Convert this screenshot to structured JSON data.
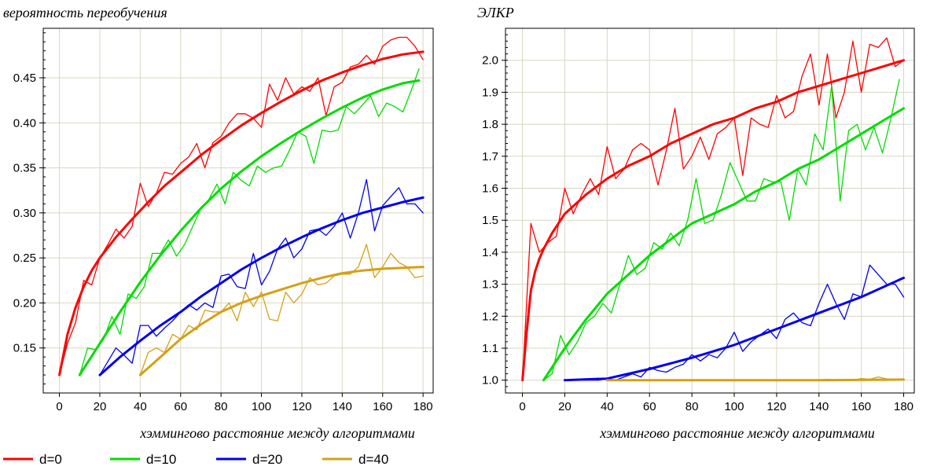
{
  "chart_data": [
    {
      "type": "line",
      "title": "вероятность переобучения",
      "xlabel": "хэммингово расстояние между алгоритмами",
      "xlim": [
        -8,
        185
      ],
      "ylim": [
        0.1,
        0.505
      ],
      "xticks": [
        0,
        20,
        40,
        60,
        80,
        100,
        120,
        140,
        160,
        180
      ],
      "xtick_labels": [
        "0",
        "20",
        "40",
        "60",
        "80",
        "100",
        "120",
        "140",
        "160",
        "180"
      ],
      "yticks": [
        0.15,
        0.2,
        0.25,
        0.3,
        0.35,
        0.4,
        0.45
      ],
      "ytick_labels": [
        "0.15",
        "0.20",
        "0.25",
        "0.30",
        "0.35",
        "0.40",
        "0.45"
      ],
      "grid": true,
      "series": [
        {
          "name": "d=0",
          "color": "#ff0000",
          "kind": "smooth",
          "x": [
            0,
            4,
            8,
            12,
            16,
            20,
            28,
            36,
            44,
            52,
            60,
            70,
            80,
            90,
            100,
            110,
            120,
            130,
            140,
            150,
            160,
            170,
            180
          ],
          "y": [
            0.12,
            0.165,
            0.195,
            0.218,
            0.236,
            0.25,
            0.273,
            0.293,
            0.312,
            0.33,
            0.345,
            0.364,
            0.381,
            0.397,
            0.411,
            0.424,
            0.436,
            0.447,
            0.456,
            0.464,
            0.471,
            0.476,
            0.479
          ]
        },
        {
          "name": "d=0",
          "color": "#ff0000",
          "kind": "noisy",
          "x": [
            0,
            4,
            8,
            12,
            16,
            20,
            24,
            28,
            32,
            36,
            40,
            44,
            48,
            52,
            56,
            60,
            64,
            68,
            72,
            76,
            80,
            84,
            88,
            92,
            96,
            100,
            104,
            108,
            112,
            116,
            120,
            124,
            128,
            132,
            136,
            140,
            144,
            148,
            152,
            156,
            160,
            164,
            168,
            172,
            176,
            180
          ],
          "y": [
            0.12,
            0.155,
            0.178,
            0.225,
            0.22,
            0.25,
            0.265,
            0.282,
            0.272,
            0.285,
            0.333,
            0.307,
            0.322,
            0.345,
            0.343,
            0.355,
            0.362,
            0.377,
            0.35,
            0.378,
            0.385,
            0.4,
            0.41,
            0.41,
            0.405,
            0.395,
            0.443,
            0.425,
            0.45,
            0.432,
            0.44,
            0.435,
            0.45,
            0.408,
            0.44,
            0.445,
            0.462,
            0.465,
            0.475,
            0.465,
            0.485,
            0.492,
            0.495,
            0.495,
            0.485,
            0.47
          ]
        },
        {
          "name": "d=10",
          "color": "#00dd00",
          "kind": "smooth",
          "x": [
            10,
            20,
            30,
            40,
            50,
            60,
            70,
            80,
            90,
            100,
            110,
            120,
            130,
            140,
            150,
            160,
            170,
            178
          ],
          "y": [
            0.12,
            0.155,
            0.19,
            0.223,
            0.253,
            0.28,
            0.305,
            0.327,
            0.346,
            0.363,
            0.378,
            0.392,
            0.405,
            0.417,
            0.428,
            0.437,
            0.444,
            0.447
          ]
        },
        {
          "name": "d=10",
          "color": "#00dd00",
          "kind": "noisy",
          "x": [
            10,
            14,
            18,
            22,
            26,
            30,
            34,
            38,
            42,
            46,
            50,
            54,
            58,
            62,
            66,
            70,
            74,
            78,
            82,
            86,
            90,
            94,
            98,
            102,
            106,
            110,
            114,
            118,
            122,
            126,
            130,
            134,
            138,
            142,
            146,
            150,
            154,
            158,
            162,
            166,
            170,
            174,
            178
          ],
          "y": [
            0.12,
            0.15,
            0.148,
            0.16,
            0.185,
            0.165,
            0.21,
            0.205,
            0.218,
            0.255,
            0.255,
            0.27,
            0.252,
            0.265,
            0.285,
            0.305,
            0.315,
            0.332,
            0.31,
            0.345,
            0.336,
            0.33,
            0.352,
            0.345,
            0.35,
            0.352,
            0.37,
            0.39,
            0.385,
            0.355,
            0.392,
            0.39,
            0.392,
            0.418,
            0.41,
            0.42,
            0.43,
            0.407,
            0.422,
            0.418,
            0.412,
            0.435,
            0.46
          ]
        },
        {
          "name": "d=20",
          "color": "#0000ee",
          "kind": "smooth",
          "x": [
            20,
            30,
            40,
            50,
            60,
            70,
            80,
            90,
            100,
            110,
            120,
            130,
            140,
            150,
            160,
            170,
            180
          ],
          "y": [
            0.12,
            0.14,
            0.158,
            0.175,
            0.19,
            0.207,
            0.222,
            0.237,
            0.25,
            0.262,
            0.273,
            0.283,
            0.292,
            0.3,
            0.306,
            0.312,
            0.317
          ]
        },
        {
          "name": "d=20",
          "color": "#0000ee",
          "kind": "noisy",
          "x": [
            20,
            24,
            28,
            32,
            36,
            40,
            44,
            48,
            52,
            56,
            60,
            64,
            68,
            72,
            76,
            80,
            84,
            88,
            92,
            96,
            100,
            104,
            108,
            112,
            116,
            120,
            124,
            128,
            132,
            136,
            140,
            144,
            148,
            152,
            156,
            160,
            164,
            168,
            172,
            176,
            180
          ],
          "y": [
            0.12,
            0.135,
            0.15,
            0.142,
            0.133,
            0.175,
            0.175,
            0.163,
            0.172,
            0.18,
            0.19,
            0.198,
            0.192,
            0.2,
            0.195,
            0.23,
            0.232,
            0.218,
            0.216,
            0.255,
            0.22,
            0.235,
            0.26,
            0.272,
            0.25,
            0.26,
            0.28,
            0.282,
            0.275,
            0.285,
            0.3,
            0.272,
            0.3,
            0.337,
            0.28,
            0.308,
            0.318,
            0.328,
            0.31,
            0.31,
            0.3
          ]
        },
        {
          "name": "d=40",
          "color": "#d4a017",
          "kind": "smooth",
          "x": [
            40,
            50,
            60,
            70,
            80,
            90,
            100,
            110,
            120,
            130,
            140,
            150,
            160,
            170,
            180
          ],
          "y": [
            0.12,
            0.14,
            0.16,
            0.176,
            0.19,
            0.2,
            0.208,
            0.215,
            0.222,
            0.228,
            0.233,
            0.236,
            0.238,
            0.239,
            0.24
          ]
        },
        {
          "name": "d=40",
          "color": "#d4a017",
          "kind": "noisy",
          "x": [
            40,
            44,
            48,
            52,
            56,
            60,
            64,
            68,
            72,
            76,
            80,
            84,
            88,
            92,
            96,
            100,
            104,
            108,
            112,
            116,
            120,
            124,
            128,
            132,
            136,
            140,
            144,
            148,
            152,
            156,
            160,
            164,
            168,
            172,
            176,
            180
          ],
          "y": [
            0.12,
            0.145,
            0.15,
            0.145,
            0.165,
            0.16,
            0.175,
            0.17,
            0.192,
            0.19,
            0.19,
            0.2,
            0.18,
            0.212,
            0.196,
            0.212,
            0.182,
            0.18,
            0.212,
            0.2,
            0.21,
            0.228,
            0.22,
            0.222,
            0.23,
            0.232,
            0.232,
            0.24,
            0.265,
            0.228,
            0.24,
            0.255,
            0.245,
            0.24,
            0.228,
            0.23
          ]
        }
      ]
    },
    {
      "type": "line",
      "title": "ЭЛКР",
      "xlabel": "хэммингово расстояние между алгоритмами",
      "xlim": [
        -8,
        185
      ],
      "ylim": [
        0.96,
        2.1
      ],
      "xticks": [
        0,
        20,
        40,
        60,
        80,
        100,
        120,
        140,
        160,
        180
      ],
      "xtick_labels": [
        "0",
        "20",
        "40",
        "60",
        "80",
        "100",
        "120",
        "140",
        "160",
        "180"
      ],
      "yticks": [
        1.0,
        1.1,
        1.2,
        1.3,
        1.4,
        1.5,
        1.6,
        1.7,
        1.8,
        1.9,
        2.0
      ],
      "ytick_labels": [
        "1.0",
        "1.1",
        "1.2",
        "1.3",
        "1.4",
        "1.5",
        "1.6",
        "1.7",
        "1.8",
        "1.9",
        "2.0"
      ],
      "grid": true,
      "series": [
        {
          "name": "d=0",
          "color": "#ff0000",
          "kind": "smooth",
          "x": [
            0,
            2,
            4,
            6,
            8,
            10,
            14,
            20,
            30,
            40,
            50,
            60,
            70,
            80,
            90,
            100,
            110,
            120,
            130,
            140,
            150,
            160,
            170,
            180
          ],
          "y": [
            1.0,
            1.15,
            1.28,
            1.34,
            1.38,
            1.41,
            1.46,
            1.52,
            1.58,
            1.63,
            1.67,
            1.7,
            1.74,
            1.77,
            1.8,
            1.82,
            1.85,
            1.87,
            1.9,
            1.92,
            1.94,
            1.96,
            1.98,
            2.0
          ]
        },
        {
          "name": "d=0",
          "color": "#ff0000",
          "kind": "noisy",
          "x": [
            0,
            4,
            8,
            12,
            16,
            20,
            24,
            28,
            32,
            36,
            40,
            44,
            48,
            52,
            56,
            60,
            64,
            68,
            72,
            76,
            80,
            84,
            88,
            92,
            96,
            100,
            104,
            108,
            112,
            116,
            120,
            124,
            128,
            132,
            136,
            140,
            144,
            148,
            152,
            156,
            160,
            164,
            168,
            172,
            176,
            180
          ],
          "y": [
            1.0,
            1.49,
            1.4,
            1.43,
            1.45,
            1.6,
            1.52,
            1.58,
            1.63,
            1.58,
            1.73,
            1.63,
            1.66,
            1.72,
            1.74,
            1.72,
            1.61,
            1.72,
            1.85,
            1.66,
            1.7,
            1.76,
            1.69,
            1.77,
            1.79,
            1.82,
            1.64,
            1.82,
            1.8,
            1.79,
            1.89,
            1.82,
            1.84,
            1.95,
            2.02,
            1.86,
            2.02,
            1.82,
            1.9,
            2.06,
            1.9,
            2.05,
            2.04,
            2.07,
            1.98,
            2.0
          ]
        },
        {
          "name": "d=10",
          "color": "#00dd00",
          "kind": "smooth",
          "x": [
            10,
            20,
            30,
            40,
            50,
            60,
            70,
            80,
            90,
            100,
            110,
            120,
            130,
            140,
            150,
            160,
            170,
            180
          ],
          "y": [
            1.0,
            1.1,
            1.19,
            1.27,
            1.33,
            1.39,
            1.44,
            1.49,
            1.52,
            1.55,
            1.59,
            1.62,
            1.66,
            1.69,
            1.73,
            1.77,
            1.81,
            1.85
          ]
        },
        {
          "name": "d=10",
          "color": "#00dd00",
          "kind": "noisy",
          "x": [
            10,
            14,
            18,
            22,
            26,
            30,
            34,
            38,
            42,
            46,
            50,
            54,
            58,
            62,
            66,
            70,
            74,
            78,
            82,
            86,
            90,
            94,
            98,
            102,
            106,
            110,
            114,
            118,
            122,
            126,
            130,
            134,
            138,
            142,
            146,
            150,
            154,
            158,
            162,
            166,
            170,
            174,
            178
          ],
          "y": [
            1.0,
            1.02,
            1.14,
            1.08,
            1.12,
            1.18,
            1.2,
            1.24,
            1.21,
            1.3,
            1.39,
            1.33,
            1.35,
            1.43,
            1.41,
            1.46,
            1.42,
            1.5,
            1.63,
            1.49,
            1.5,
            1.58,
            1.68,
            1.62,
            1.56,
            1.56,
            1.63,
            1.62,
            1.62,
            1.5,
            1.66,
            1.61,
            1.77,
            1.72,
            1.92,
            1.56,
            1.78,
            1.8,
            1.72,
            1.79,
            1.71,
            1.82,
            1.94
          ]
        },
        {
          "name": "d=20",
          "color": "#0000ee",
          "kind": "smooth",
          "x": [
            20,
            40,
            60,
            80,
            100,
            120,
            140,
            160,
            180
          ],
          "y": [
            1.0,
            1.005,
            1.035,
            1.07,
            1.11,
            1.16,
            1.21,
            1.26,
            1.32
          ]
        },
        {
          "name": "d=20",
          "color": "#0000ee",
          "kind": "noisy",
          "x": [
            20,
            24,
            28,
            32,
            36,
            40,
            44,
            48,
            52,
            56,
            60,
            64,
            68,
            72,
            76,
            80,
            84,
            88,
            92,
            96,
            100,
            104,
            108,
            112,
            116,
            120,
            124,
            128,
            132,
            136,
            140,
            144,
            148,
            152,
            156,
            160,
            164,
            168,
            172,
            176,
            180
          ],
          "y": [
            1.0,
            1.0,
            1.0,
            1.0,
            1.0,
            1.005,
            1.0,
            1.01,
            1.02,
            1.01,
            1.04,
            1.03,
            1.025,
            1.04,
            1.05,
            1.08,
            1.06,
            1.08,
            1.07,
            1.1,
            1.15,
            1.09,
            1.12,
            1.14,
            1.16,
            1.13,
            1.19,
            1.21,
            1.18,
            1.17,
            1.24,
            1.3,
            1.24,
            1.19,
            1.27,
            1.26,
            1.36,
            1.33,
            1.3,
            1.3,
            1.26
          ]
        },
        {
          "name": "d=40",
          "color": "#d4a017",
          "kind": "smooth",
          "x": [
            40,
            100,
            140,
            180
          ],
          "y": [
            1.0,
            1.0,
            1.0,
            1.002
          ]
        },
        {
          "name": "d=40",
          "color": "#d4a017",
          "kind": "noisy",
          "x": [
            40,
            60,
            80,
            100,
            120,
            140,
            144,
            148,
            152,
            156,
            160,
            164,
            168,
            172,
            176,
            180
          ],
          "y": [
            1.0,
            1.0,
            1.0,
            1.0,
            1.0,
            1.0,
            1.003,
            1.0,
            1.002,
            1.0,
            1.005,
            1.003,
            1.01,
            1.004,
            1.002,
            1.003
          ]
        }
      ]
    }
  ],
  "legend": [
    {
      "label": "d=0",
      "color": "#ff0000"
    },
    {
      "label": "d=10",
      "color": "#00dd00"
    },
    {
      "label": "d=20",
      "color": "#0000ee"
    },
    {
      "label": "d=40",
      "color": "#d4a017"
    }
  ]
}
